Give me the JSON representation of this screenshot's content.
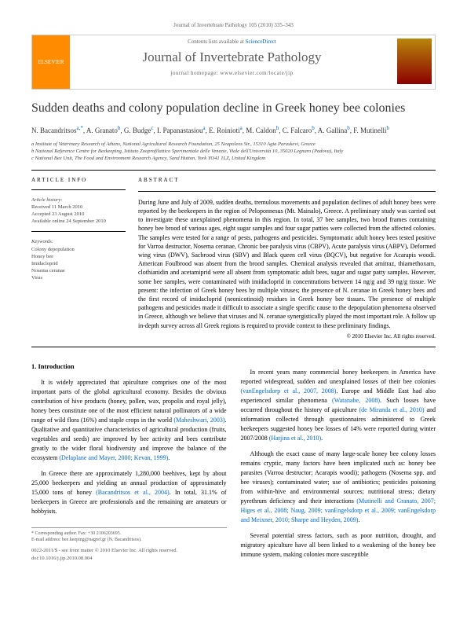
{
  "header": {
    "citation": "Journal of Invertebrate Pathology 105 (2010) 335–343"
  },
  "banner": {
    "publisher": "ELSEVIER",
    "contents": "Contents lists available at",
    "sd": "ScienceDirect",
    "journal": "Journal of Invertebrate Pathology",
    "homepage": "journal homepage: www.elsevier.com/locate/jip"
  },
  "article": {
    "title": "Sudden deaths and colony population decline in Greek honey bee colonies",
    "authors_html": "N. Bacandritsos",
    "a1": "a,*",
    "a2n": ", A. Granato",
    "a2": "b",
    "a3n": ", G. Budge",
    "a3": "c",
    "a4n": ", I. Papanastasiou",
    "a4": "a",
    "a5n": ", E. Roinioti",
    "a5": "a",
    "a6n": ", M. Caldon",
    "a6": "b",
    "a7n": ", C. Falcaro",
    "a7": "b",
    "a8n": ", A. Gallina",
    "a8": "b",
    "a9n": ", F. Mutinelli",
    "a9": "b",
    "affil1": "a Institute of Veterinary Research of Athens, National Agricultural Research Foundation, 25 Neapoleos Str., 15310 Agia Paraskevi, Greece",
    "affil2": "b National Reference Centre for Beekeeping, Istituto Zooprofilattico Sperimentale delle Venezie, Viale dell'Università 10, 35020 Legnaro (Padova), Italy",
    "affil3": "c National Bee Unit, The Food and Environment Research Agency, Sand Hutton, York YO41 1LZ, United Kingdom"
  },
  "info": {
    "head": "ARTICLE INFO",
    "history": "Article history:",
    "rec": "Received 11 March 2010",
    "acc": "Accepted 23 August 2010",
    "avail": "Available online 24 September 2010",
    "kwhead": "Keywords:",
    "kw1": "Colony depopulation",
    "kw2": "Honey bee",
    "kw3": "Imidacloprid",
    "kw4": "Nosema ceranae",
    "kw5": "Virus"
  },
  "abstract": {
    "head": "ABSTRACT",
    "text": "During June and July of 2009, sudden deaths, tremulous movements and population declines of adult honey bees were reported by the beekeepers in the region of Peloponnesus (Mt. Mainalo), Greece. A preliminary study was carried out to investigate these unexplained phenomena in this region. In total, 37 bee samples, two brood frames containing honey bee brood of various ages, eight sugar samples and four sugar patties were collected from the affected colonies. The samples were tested for a range of pests, pathogens and pesticides. Symptomatic adult honey bees tested positive for Varroa destructor, Nosema ceranae, Chronic bee paralysis virus (CBPV), Acute paralysis virus (ABPV), Deformed wing virus (DWV), Sacbrood virus (SBV) and Black queen cell virus (BQCV), but negative for Acarapis woodi. American Foulbrood was absent from the brood samples. Chemical analysis revealed that amitraz, thiamethoxam, clothianidin and acetamiprid were all absent from symptomatic adult bees, sugar and sugar patty samples. However, some bee samples, were contaminated with imidacloprid in concentrations between 14 ng/g and 39 ng/g tissue. We present: the infection of Greek honey bees by multiple viruses; the presence of N. ceranae in Greek honey bees and the first record of imidacloprid (neonicotinoid) residues in Greek honey bee tissues. The presence of multiple pathogens and pesticides made it difficult to associate a single specific cause to the depopulation phenomena observed in Greece, although we believe that viruses and N. ceranae synergistically played the most important role. A follow up in-depth survey across all Greek regions is required to provide context to these preliminary findings.",
    "copyright": "© 2010 Elsevier Inc. All rights reserved."
  },
  "body": {
    "intro_head": "1. Introduction",
    "p1a": "It is widely appreciated that apiculture comprises one of the most important parts of the global agricultural economy. Besides the obvious contribution of hive products (honey, pollen, wax, propolis and royal jelly), honey bees constitute one of the most efficient natural pollinators of a wide range of wild flora (16%) and staple crops in the world ",
    "c1": "(Maheshwari, 2003)",
    "p1b": ". Qualitative and quantitative characteristics of agricultural production (fruits, vegetables and seeds) are improved by bee activity and bees contribute greatly to the wider floral biodiversity and improve the balance of the ecosystem ",
    "c2": "(Delaplane and Mayer, 2000; Kevan, 1999)",
    "p1c": ".",
    "p2a": "In Greece there are approximately 1,280,000 beehives, kept by about 25,000 beekeepers and yielding an annual production of approximately 15,000 tons of honey ",
    "c3": "(Bacandritsos et al., 2004)",
    "p2b": ". In total, 31.1% of beekeepers in Greece are professionals and the remaining are amateurs or hobbyists.",
    "p3a": "In recent years many commercial honey beekeepers in America have reported widespread, sudden and unexplained losses of their bee colonies ",
    "c4": "(vanEngelsdorp et al., 2007, 2008)",
    "p3b": ". Europe and Middle East had also experienced similar phenomena ",
    "c5": "(Watanabe, 2008)",
    "p3c": ". Such losses have occurred throughout the history of apiculture ",
    "c6": "(de Miranda et al., 2010)",
    "p3d": " and information collected through questionnaires administered to Greek beekeepers suggested honey bee losses of 14% were reported during winter 2007/2008 ",
    "c7": "(Hatjina et al., 2010)",
    "p3e": ".",
    "p4a": "Although the exact cause of many large-scale honey bee colony losses remains cryptic, many factors have been implicated such as: honey bee parasites (Varroa destructor; Acarapis woodi); pathogens (Nosema spp. and bee viruses); contaminated water; use of antibiotics; pesticides poisoning from within-hive and environmental sources; nutritional stress; dietary pyrethrum deficiency and their interactions ",
    "c8": "(Mutinelli and Granato, 2007; Higes et al., 2008; Naug, 2009; vanEngelsdorp et al., 2009; vanEngelsdorp and Meixner, 2010; Sharpe and Heyden, 2009)",
    "p4b": ".",
    "p5": "Several potential stress factors, such as poor nutrition, drought, and migratory apiculture have all been linked to a weakening of the honey bee immune system, making colonies more susceptible"
  },
  "footer": {
    "corr": "* Corresponding author. Fax: +30 2106203695.",
    "email": "E-mail address: bee.keeping@nagref.gr (N. Bacandritsos).",
    "issn": "0022-2011/$ - see front matter © 2010 Elsevier Inc. All rights reserved.",
    "doi": "doi:10.1016/j.jip.2010.08.004"
  }
}
